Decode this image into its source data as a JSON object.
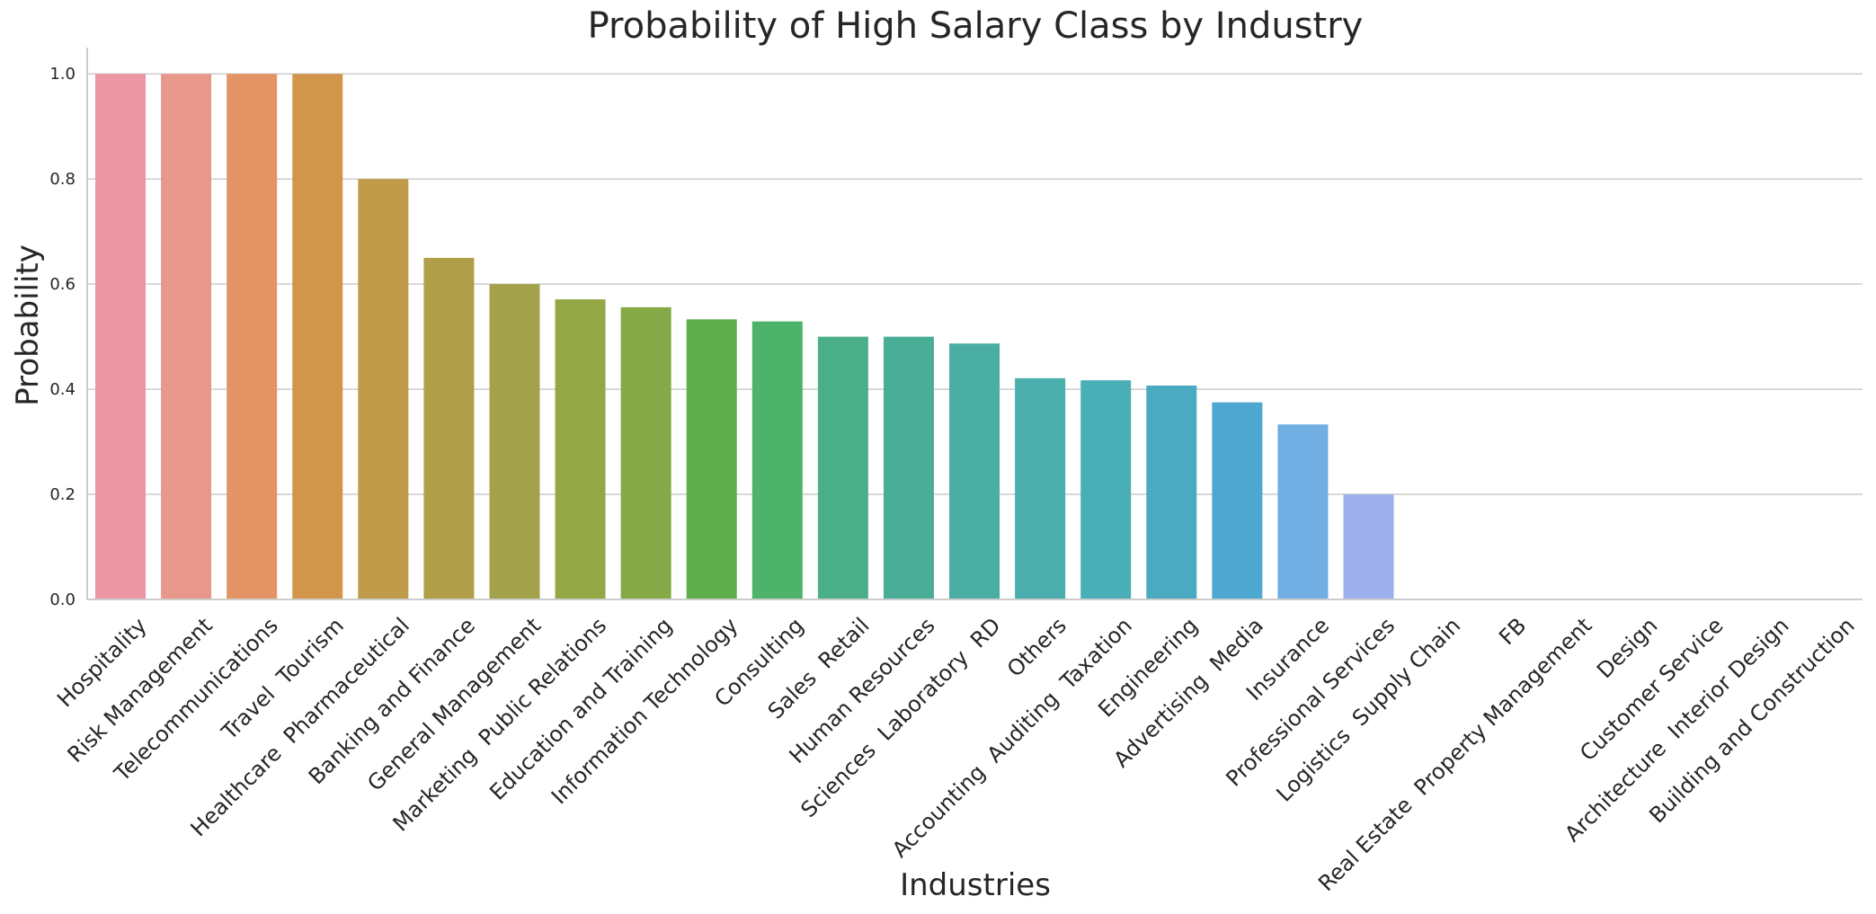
{
  "chart_data": {
    "type": "bar",
    "title": "Probability of High Salary Class by Industry",
    "xlabel": "Industries",
    "ylabel": "Probability",
    "ylim": [
      0,
      1.05
    ],
    "yticks": [
      "0.0",
      "0.2",
      "0.4",
      "0.6",
      "0.8",
      "1.0"
    ],
    "grid": true,
    "categories": [
      "Hospitality",
      "Risk Management",
      "Telecommunications",
      "Travel  Tourism",
      "Healthcare  Pharmaceutical",
      "Banking and Finance",
      "General Management",
      "Marketing  Public Relations",
      "Education and Training",
      "Information Technology",
      "Consulting",
      "Sales  Retail",
      "Human Resources",
      "Sciences  Laboratory  RD",
      "Others",
      "Accounting  Auditing  Taxation",
      "Engineering",
      "Advertising  Media",
      "Insurance",
      "Professional Services",
      "Logistics  Supply Chain",
      "FB",
      "Real Estate  Property Management",
      "Design",
      "Customer Service",
      "Architecture  Interior Design",
      "Building and Construction"
    ],
    "values": [
      1.0,
      1.0,
      1.0,
      1.0,
      0.8,
      0.65,
      0.6,
      0.571,
      0.556,
      0.533,
      0.529,
      0.5,
      0.5,
      0.487,
      0.421,
      0.417,
      0.407,
      0.375,
      0.333,
      0.2,
      0,
      0,
      0,
      0,
      0,
      0,
      0
    ],
    "colors": [
      "#ea96a3",
      "#e8988b",
      "#e49464",
      "#d1964a",
      "#bf9b4a",
      "#b19e48",
      "#a3a14a",
      "#94a745",
      "#84a946",
      "#5fae4c",
      "#4db26a",
      "#4bb089",
      "#4aae97",
      "#4aaea2",
      "#4aaead",
      "#4aaeb7",
      "#4aaac1",
      "#4ea7d0",
      "#70ade2",
      "#9db0ec",
      "#b6aaf0",
      "#c9a3f0",
      "#dc9be8",
      "#e693da",
      "#ec93c9",
      "#ee95b8",
      "#ec97aa"
    ]
  }
}
